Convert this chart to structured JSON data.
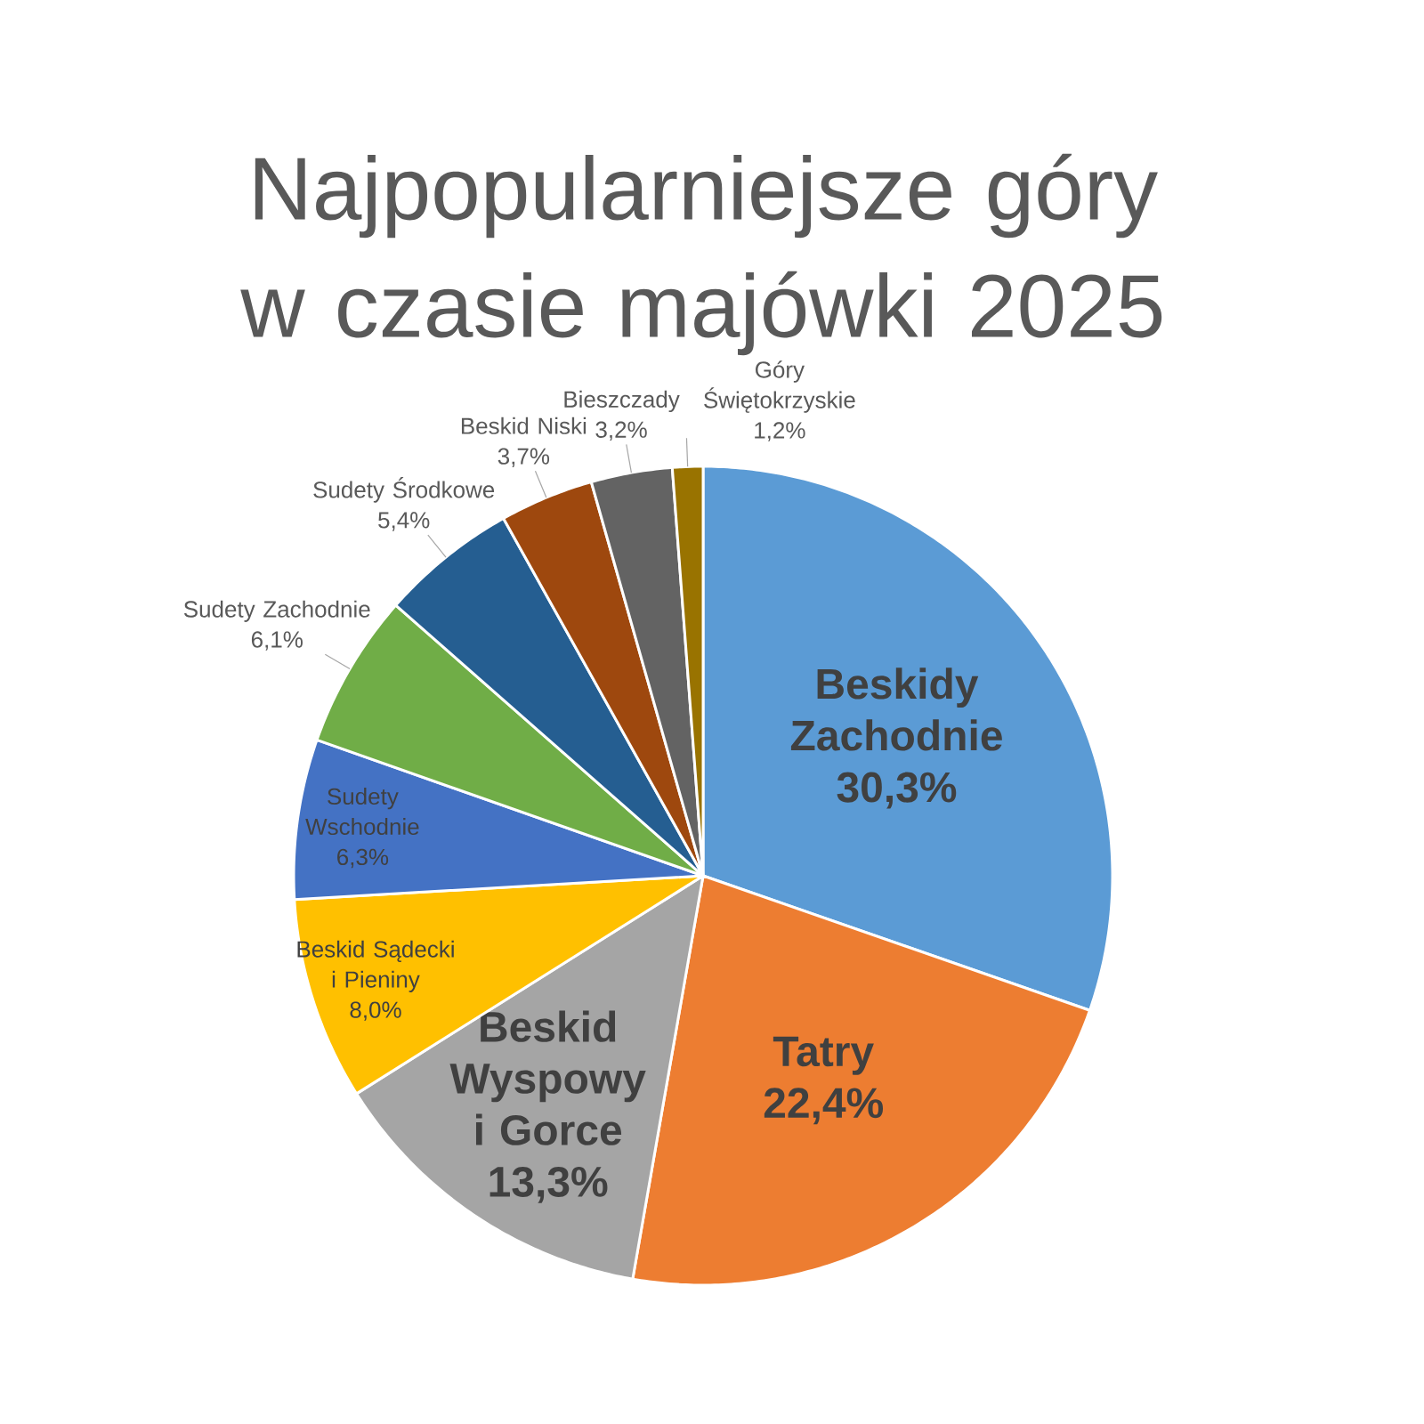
{
  "chart_data": {
    "type": "pie",
    "title": "Najpopularniejsze góry w czasie majówki 2025",
    "categories": [
      "Beskidy Zachodnie",
      "Tatry",
      "Beskid Wyspowy i Gorce",
      "Beskid Sądecki i Pieniny",
      "Sudety Wschodnie",
      "Sudety Zachodnie",
      "Sudety Środkowe",
      "Beskid Niski",
      "Bieszczady",
      "Góry Świętokrzyskie"
    ],
    "values": [
      30.3,
      22.4,
      13.3,
      8.0,
      6.3,
      6.1,
      5.4,
      3.7,
      3.2,
      1.2
    ],
    "value_labels": [
      "30,3%",
      "22,4%",
      "13,3%",
      "8,0%",
      "6,3%",
      "6,1%",
      "5,4%",
      "3,7%",
      "3,2%",
      "1,2%"
    ],
    "colors": [
      "#5b9bd5",
      "#ed7d31",
      "#a5a5a5",
      "#ffc000",
      "#4472c4",
      "#70ad47",
      "#255e91",
      "#9e480e",
      "#636363",
      "#997300"
    ]
  }
}
